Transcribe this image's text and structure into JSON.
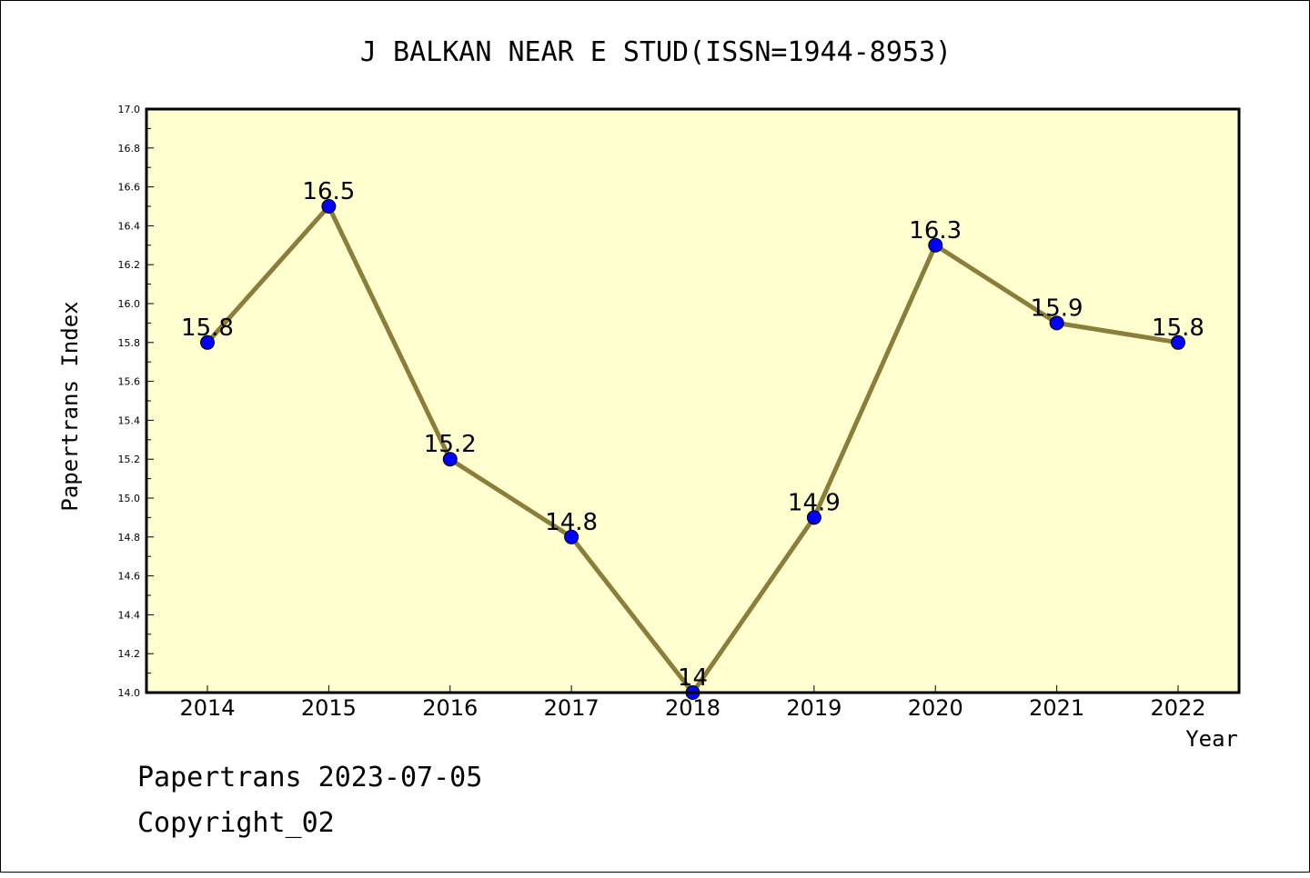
{
  "chart_data": {
    "type": "line",
    "title": "J BALKAN NEAR E STUD(ISSN=1944-8953)",
    "xlabel": "Year",
    "ylabel": "Papertrans Index",
    "categories": [
      "2014",
      "2015",
      "2016",
      "2017",
      "2018",
      "2019",
      "2020",
      "2021",
      "2022"
    ],
    "series": [
      {
        "values": [
          15.8,
          16.5,
          15.2,
          14.8,
          14.0,
          14.9,
          16.3,
          15.9,
          15.8
        ],
        "labels": [
          "15.8",
          "16.5",
          "15.2",
          "14.8",
          "14",
          "14.9",
          "16.3",
          "15.9",
          "15.8"
        ]
      }
    ],
    "ylim": [
      14.0,
      17.0
    ],
    "yticks": [
      "14.0",
      "14.2",
      "14.4",
      "14.6",
      "14.8",
      "15.0",
      "15.2",
      "15.4",
      "15.6",
      "15.8",
      "16.0",
      "16.2",
      "16.4",
      "16.6",
      "16.8",
      "17.0"
    ],
    "grid": false,
    "colors": {
      "plot_background": "#ffffd0",
      "line": "#8b7d3a",
      "marker": "#0000ff"
    }
  },
  "footer": {
    "line1": "Papertrans 2023-07-05",
    "line2": "Copyright_02"
  }
}
